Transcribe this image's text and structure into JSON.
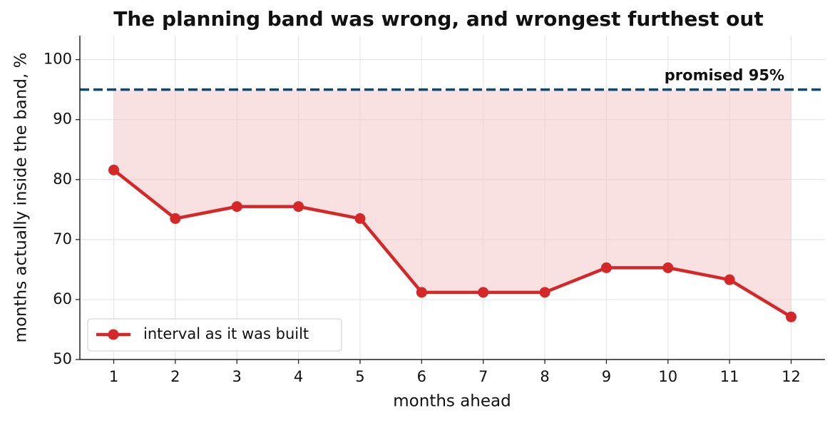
{
  "chart_data": {
    "type": "line",
    "title": "The planning band was wrong, and wrongest furthest out",
    "x_label": "months ahead",
    "y_label": "months actually inside the band, %",
    "x": [
      1,
      2,
      3,
      4,
      5,
      6,
      7,
      8,
      9,
      10,
      11,
      12
    ],
    "series": [
      {
        "name": "interval as it was built",
        "color": "#d62728",
        "values": [
          81.6,
          73.5,
          75.5,
          75.5,
          73.5,
          61.2,
          61.2,
          61.2,
          65.3,
          65.3,
          63.3,
          57.1
        ]
      }
    ],
    "reference": {
      "value": 95,
      "label": "promised 95%",
      "color": "#0b4a6f"
    },
    "fill_color": "#f4c4c4",
    "xlim": [
      0.45,
      12.55
    ],
    "ylim": [
      50,
      104
    ],
    "xticks": [
      1,
      2,
      3,
      4,
      5,
      6,
      7,
      8,
      9,
      10,
      11,
      12
    ],
    "yticks": [
      50,
      60,
      70,
      80,
      90,
      100
    ],
    "grid": true,
    "legend": "lower left"
  }
}
